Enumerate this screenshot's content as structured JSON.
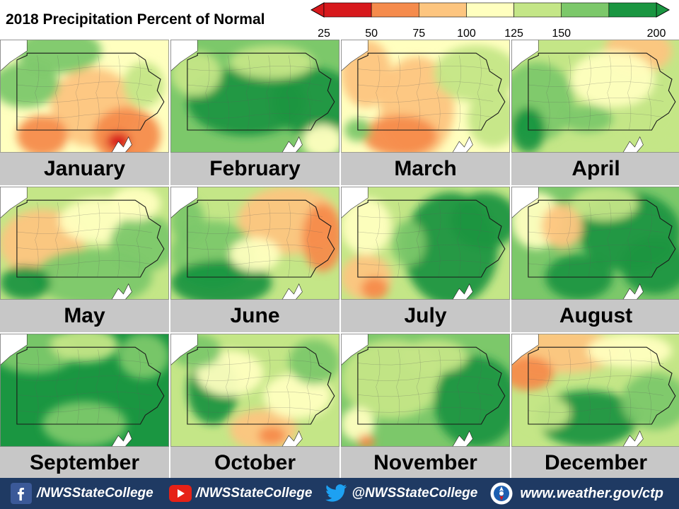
{
  "title": "2018 Precipitation Percent of Normal",
  "legend": {
    "ticks": [
      "25",
      "50",
      "75",
      "100",
      "125",
      "150",
      "200"
    ],
    "colors": [
      "#d7191c",
      "#f58b4c",
      "#fdc57f",
      "#ffffbf",
      "#c4e687",
      "#7cc86a",
      "#1a9641"
    ]
  },
  "colors": {
    "map_background": "#ffffff",
    "label_bar": "#c7c7c7",
    "footer": "#1f3a63",
    "facebook": "#3b5998",
    "youtube": "#e62117",
    "twitter": "#1da1f2"
  },
  "months": [
    {
      "name": "January",
      "base": 3,
      "blobs": [
        [
          0.55,
          0.6,
          0.25,
          0.35,
          2
        ],
        [
          0.75,
          0.85,
          0.2,
          0.25,
          1
        ],
        [
          0.15,
          0.4,
          0.2,
          0.2,
          5
        ],
        [
          0.35,
          0.1,
          0.25,
          0.2,
          5
        ],
        [
          0.25,
          0.85,
          0.15,
          0.18,
          1
        ],
        [
          0.85,
          0.4,
          0.12,
          0.2,
          4
        ],
        [
          0.7,
          0.9,
          0.07,
          0.08,
          0
        ]
      ]
    },
    {
      "name": "February",
      "base": 5,
      "blobs": [
        [
          0.45,
          0.55,
          0.35,
          0.3,
          6
        ],
        [
          0.85,
          0.55,
          0.25,
          0.3,
          6
        ],
        [
          0.15,
          0.3,
          0.15,
          0.2,
          4
        ],
        [
          0.6,
          0.2,
          0.25,
          0.15,
          4
        ],
        [
          0.9,
          0.9,
          0.12,
          0.15,
          3
        ]
      ]
    },
    {
      "name": "March",
      "base": 3,
      "blobs": [
        [
          0.45,
          0.6,
          0.22,
          0.45,
          2
        ],
        [
          0.15,
          0.3,
          0.15,
          0.3,
          2
        ],
        [
          0.35,
          0.85,
          0.22,
          0.18,
          1
        ],
        [
          0.8,
          0.3,
          0.25,
          0.25,
          4
        ],
        [
          0.9,
          0.7,
          0.15,
          0.25,
          4
        ],
        [
          0.1,
          0.8,
          0.08,
          0.1,
          5
        ]
      ]
    },
    {
      "name": "April",
      "base": 4,
      "blobs": [
        [
          0.15,
          0.55,
          0.22,
          0.35,
          5
        ],
        [
          0.1,
          0.8,
          0.1,
          0.2,
          6
        ],
        [
          0.75,
          0.1,
          0.2,
          0.2,
          2
        ],
        [
          0.6,
          0.35,
          0.25,
          0.25,
          3
        ],
        [
          0.85,
          0.7,
          0.15,
          0.2,
          4
        ],
        [
          0.45,
          0.7,
          0.15,
          0.12,
          5
        ]
      ]
    },
    {
      "name": "May",
      "base": 4,
      "blobs": [
        [
          0.25,
          0.5,
          0.25,
          0.3,
          2
        ],
        [
          0.6,
          0.3,
          0.25,
          0.2,
          3
        ],
        [
          0.55,
          0.8,
          0.35,
          0.25,
          5
        ],
        [
          0.85,
          0.5,
          0.2,
          0.25,
          5
        ],
        [
          0.15,
          0.85,
          0.15,
          0.15,
          6
        ],
        [
          0.8,
          0.15,
          0.15,
          0.15,
          3
        ]
      ]
    },
    {
      "name": "June",
      "base": 4,
      "blobs": [
        [
          0.7,
          0.3,
          0.3,
          0.3,
          2
        ],
        [
          0.9,
          0.45,
          0.12,
          0.3,
          1
        ],
        [
          0.25,
          0.6,
          0.25,
          0.3,
          5
        ],
        [
          0.3,
          0.85,
          0.3,
          0.2,
          6
        ],
        [
          0.1,
          0.3,
          0.1,
          0.2,
          5
        ],
        [
          0.5,
          0.6,
          0.15,
          0.15,
          3
        ]
      ]
    },
    {
      "name": "July",
      "base": 4,
      "blobs": [
        [
          0.65,
          0.55,
          0.28,
          0.5,
          6
        ],
        [
          0.85,
          0.3,
          0.2,
          0.25,
          6
        ],
        [
          0.15,
          0.8,
          0.15,
          0.2,
          2
        ],
        [
          0.2,
          0.9,
          0.08,
          0.1,
          1
        ],
        [
          0.15,
          0.35,
          0.15,
          0.25,
          3
        ],
        [
          0.4,
          0.5,
          0.1,
          0.2,
          5
        ]
      ]
    },
    {
      "name": "August",
      "base": 5,
      "blobs": [
        [
          0.7,
          0.4,
          0.3,
          0.35,
          6
        ],
        [
          0.85,
          0.7,
          0.2,
          0.25,
          6
        ],
        [
          0.15,
          0.3,
          0.15,
          0.25,
          3
        ],
        [
          0.3,
          0.35,
          0.12,
          0.2,
          2
        ],
        [
          0.4,
          0.8,
          0.2,
          0.2,
          6
        ],
        [
          0.55,
          0.15,
          0.2,
          0.15,
          4
        ]
      ]
    },
    {
      "name": "September",
      "base": 6,
      "blobs": [
        [
          0.2,
          0.15,
          0.25,
          0.2,
          5
        ],
        [
          0.5,
          0.1,
          0.2,
          0.15,
          4
        ],
        [
          0.85,
          0.2,
          0.15,
          0.2,
          5
        ],
        [
          0.5,
          0.8,
          0.25,
          0.2,
          5
        ]
      ]
    },
    {
      "name": "October",
      "base": 4,
      "blobs": [
        [
          0.25,
          0.5,
          0.15,
          0.3,
          6
        ],
        [
          0.55,
          0.85,
          0.2,
          0.18,
          2
        ],
        [
          0.6,
          0.9,
          0.08,
          0.08,
          1
        ],
        [
          0.35,
          0.35,
          0.2,
          0.2,
          3
        ],
        [
          0.75,
          0.55,
          0.2,
          0.2,
          3
        ],
        [
          0.85,
          0.25,
          0.15,
          0.2,
          5
        ],
        [
          0.15,
          0.15,
          0.15,
          0.15,
          5
        ]
      ]
    },
    {
      "name": "November",
      "base": 5,
      "blobs": [
        [
          0.3,
          0.4,
          0.3,
          0.35,
          4
        ],
        [
          0.8,
          0.6,
          0.25,
          0.4,
          6
        ],
        [
          0.1,
          0.8,
          0.1,
          0.15,
          3
        ],
        [
          0.15,
          0.95,
          0.05,
          0.06,
          1
        ],
        [
          0.55,
          0.2,
          0.2,
          0.15,
          4
        ]
      ]
    },
    {
      "name": "December",
      "base": 4,
      "blobs": [
        [
          0.3,
          0.15,
          0.35,
          0.2,
          2
        ],
        [
          0.1,
          0.35,
          0.15,
          0.15,
          1
        ],
        [
          0.7,
          0.15,
          0.25,
          0.15,
          3
        ],
        [
          0.45,
          0.75,
          0.3,
          0.25,
          6
        ],
        [
          0.85,
          0.6,
          0.2,
          0.25,
          5
        ],
        [
          0.2,
          0.7,
          0.15,
          0.15,
          4
        ]
      ]
    }
  ],
  "footer": {
    "facebook_handle": "/NWSStateCollege",
    "youtube_handle": "/NWSStateCollege",
    "twitter_handle": "@NWSStateCollege",
    "website": "www.weather.gov/ctp"
  }
}
